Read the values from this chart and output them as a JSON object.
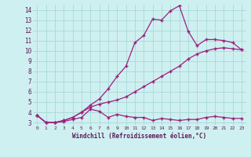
{
  "xlabel": "Windchill (Refroidissement éolien,°C)",
  "background_color": "#cff0f0",
  "grid_color": "#a8d8d8",
  "line_color": "#9b2080",
  "xlim": [
    -0.5,
    23.5
  ],
  "ylim": [
    2.7,
    14.5
  ],
  "line1_x": [
    0,
    1,
    2,
    3,
    4,
    5,
    6,
    7,
    8,
    9,
    10,
    11,
    12,
    13,
    14,
    15,
    16,
    17,
    18,
    19,
    20,
    21,
    22,
    23
  ],
  "line1_y": [
    3.7,
    3.0,
    3.0,
    3.1,
    3.3,
    3.5,
    4.3,
    4.1,
    3.5,
    3.8,
    3.6,
    3.5,
    3.5,
    3.2,
    3.4,
    3.3,
    3.2,
    3.3,
    3.3,
    3.5,
    3.6,
    3.5,
    3.4,
    3.4
  ],
  "line2_x": [
    0,
    1,
    2,
    3,
    4,
    5,
    6,
    7,
    8,
    9,
    10,
    11,
    12,
    13,
    14,
    15,
    16,
    17,
    18,
    19,
    20,
    21,
    22,
    23
  ],
  "line2_y": [
    3.7,
    3.0,
    3.0,
    3.2,
    3.5,
    4.0,
    4.7,
    5.3,
    6.3,
    7.5,
    8.5,
    10.8,
    11.5,
    13.1,
    13.0,
    13.9,
    14.4,
    11.9,
    10.5,
    11.1,
    11.1,
    11.0,
    10.8,
    10.1
  ],
  "line3_x": [
    0,
    1,
    2,
    3,
    4,
    5,
    6,
    7,
    8,
    9,
    10,
    11,
    12,
    13,
    14,
    15,
    16,
    17,
    18,
    19,
    20,
    21,
    22,
    23
  ],
  "line3_y": [
    3.7,
    3.0,
    3.0,
    3.2,
    3.5,
    4.0,
    4.5,
    4.8,
    5.0,
    5.2,
    5.5,
    6.0,
    6.5,
    7.0,
    7.5,
    8.0,
    8.5,
    9.2,
    9.7,
    10.0,
    10.2,
    10.3,
    10.2,
    10.1
  ]
}
